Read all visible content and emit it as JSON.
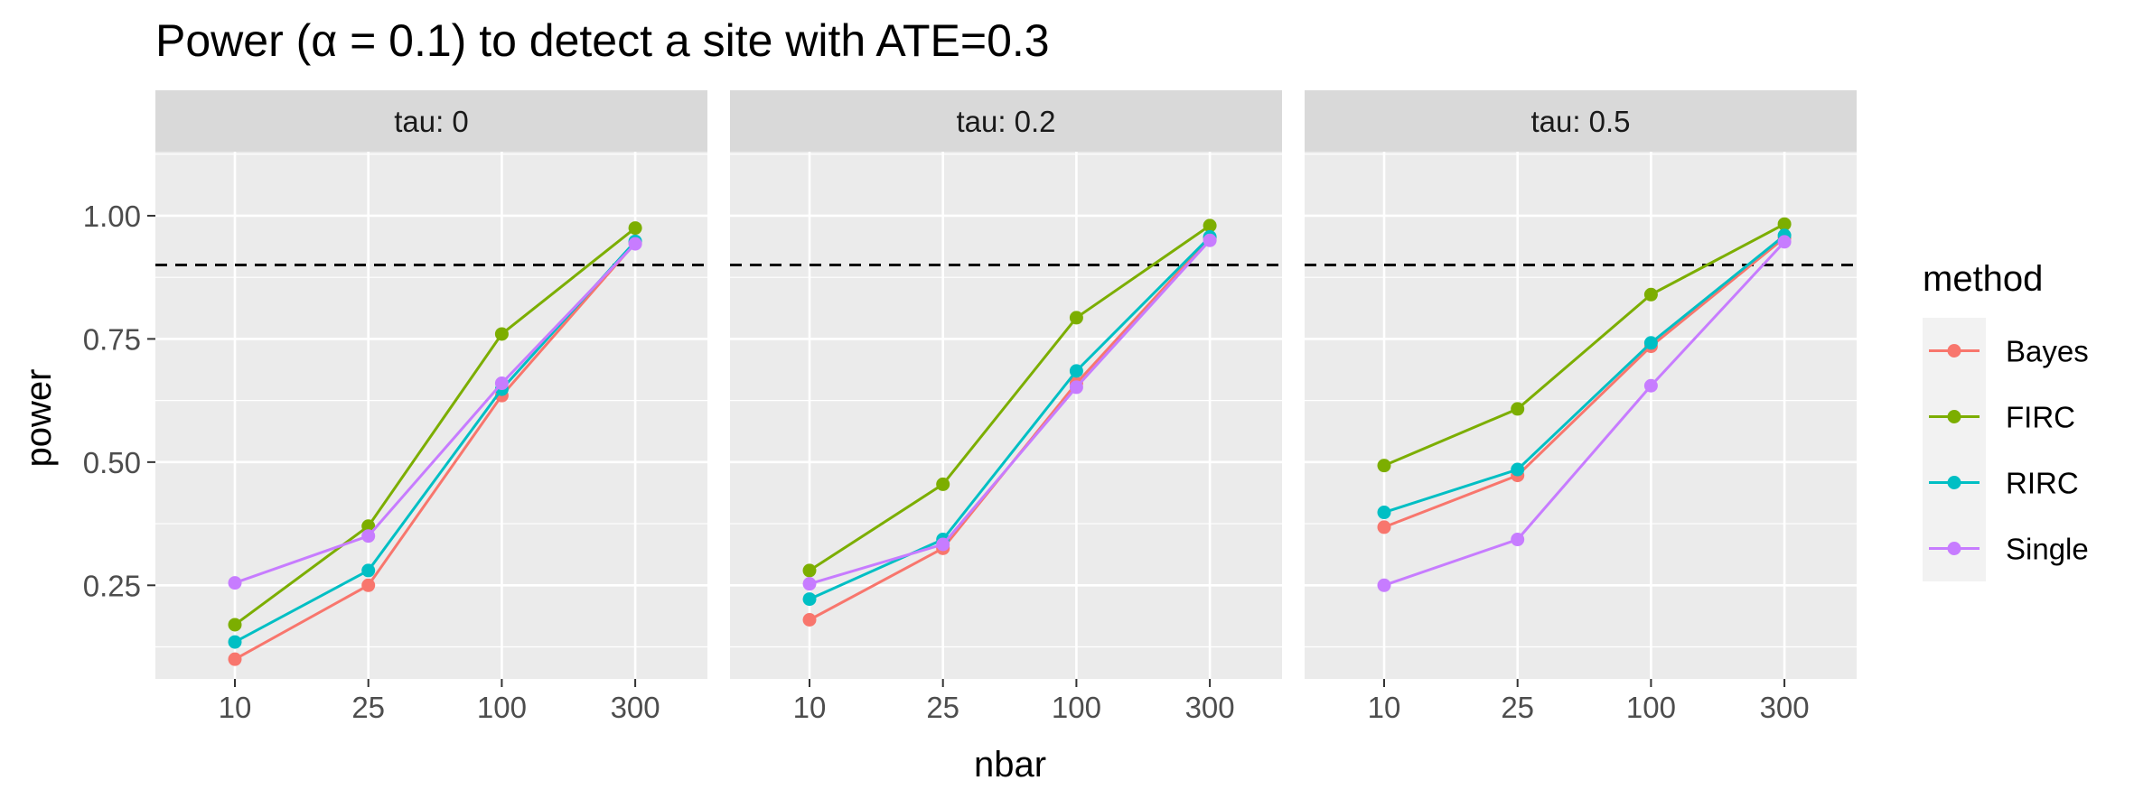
{
  "chart_data": {
    "type": "line",
    "title": "Power (α = 0.1) to detect a site with ATE=0.3",
    "xlabel": "nbar",
    "ylabel": "power",
    "categories": [
      "10",
      "25",
      "100",
      "300"
    ],
    "ylim": [
      0.06,
      1.13
    ],
    "yticks": [
      0.25,
      0.5,
      0.75,
      1.0
    ],
    "ytick_labels": [
      "0.25",
      "0.50",
      "0.75",
      "1.00"
    ],
    "reference_line": 0.9,
    "grid": true,
    "legend": {
      "title": "method",
      "position": "right",
      "entries": [
        "Bayes",
        "FIRC",
        "RIRC",
        "Single"
      ]
    },
    "colors": {
      "Bayes": "#F8766D",
      "FIRC": "#7CAE00",
      "RIRC": "#00BFC4",
      "Single": "#C77CFF"
    },
    "panels": [
      {
        "label": "tau: 0",
        "series": [
          {
            "name": "Bayes",
            "values": [
              0.1,
              0.25,
              0.635,
              0.945
            ]
          },
          {
            "name": "FIRC",
            "values": [
              0.17,
              0.37,
              0.76,
              0.975
            ]
          },
          {
            "name": "RIRC",
            "values": [
              0.135,
              0.28,
              0.648,
              0.948
            ]
          },
          {
            "name": "Single",
            "values": [
              0.255,
              0.35,
              0.66,
              0.943
            ]
          }
        ]
      },
      {
        "label": "tau: 0.2",
        "series": [
          {
            "name": "Bayes",
            "values": [
              0.18,
              0.325,
              0.66,
              0.955
            ]
          },
          {
            "name": "FIRC",
            "values": [
              0.28,
              0.455,
              0.793,
              0.98
            ]
          },
          {
            "name": "RIRC",
            "values": [
              0.222,
              0.343,
              0.685,
              0.957
            ]
          },
          {
            "name": "Single",
            "values": [
              0.253,
              0.333,
              0.652,
              0.95
            ]
          }
        ]
      },
      {
        "label": "tau: 0.5",
        "series": [
          {
            "name": "Bayes",
            "values": [
              0.368,
              0.473,
              0.735,
              0.955
            ]
          },
          {
            "name": "FIRC",
            "values": [
              0.493,
              0.608,
              0.84,
              0.983
            ]
          },
          {
            "name": "RIRC",
            "values": [
              0.398,
              0.485,
              0.742,
              0.96
            ]
          },
          {
            "name": "Single",
            "values": [
              0.25,
              0.343,
              0.655,
              0.947
            ]
          }
        ]
      }
    ]
  }
}
